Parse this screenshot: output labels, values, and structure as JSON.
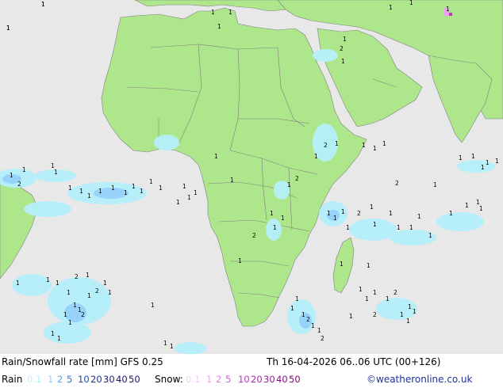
{
  "title": "Rain/Snowfall rate [mm] GFS 0.25",
  "datetime": "Th 16-04-2026 06..06 UTC (00+126)",
  "credit": "©weatheronline.co.uk",
  "legend": {
    "rain_label": "Rain",
    "snow_label": "Snow:",
    "rain_values": [
      "0.1",
      "1",
      "2",
      "5",
      "10",
      "20",
      "30",
      "40",
      "50"
    ],
    "snow_values": [
      "0.1",
      "1",
      "2",
      "5",
      "10",
      "20",
      "30",
      "40",
      "50"
    ],
    "rain_colors": [
      "#b4f0fa",
      "#96d2fa",
      "#50a5f5",
      "#2878dc",
      "#1e4bb4",
      "#1e3296",
      "#1e1e78",
      "#1e1464",
      "#1e1464"
    ],
    "snow_colors": [
      "#fac8fa",
      "#f0a0f0",
      "#e678e6",
      "#dc50dc",
      "#c832c8",
      "#b41eb4",
      "#a014a0",
      "#8c0a8c",
      "#780078"
    ]
  },
  "colors": {
    "ocean": "#e8e8e8",
    "land": "#aee68c",
    "border": "#808080",
    "precip_light": "#b4f0fa",
    "precip_med": "#96d2fa"
  },
  "rain_labels": [
    {
      "v": "1"
    },
    {
      "v": "1"
    },
    {
      "v": "2"
    },
    {
      "v": "1"
    },
    {
      "v": "1"
    },
    {
      "v": "1"
    },
    {
      "v": "1"
    },
    {
      "v": "1"
    },
    {
      "v": "1"
    },
    {
      "v": "1"
    },
    {
      "v": "1"
    },
    {
      "v": "1"
    },
    {
      "v": "1"
    },
    {
      "v": "1"
    },
    {
      "v": "1"
    },
    {
      "v": "1"
    },
    {
      "v": "1"
    },
    {
      "v": "1"
    },
    {
      "v": "1"
    },
    {
      "v": "1"
    },
    {
      "v": "1"
    },
    {
      "v": "1"
    },
    {
      "v": "1"
    },
    {
      "v": "1"
    },
    {
      "v": "2"
    },
    {
      "v": "1"
    },
    {
      "v": "1"
    },
    {
      "v": "1"
    },
    {
      "v": "1"
    },
    {
      "v": "2"
    },
    {
      "v": "1"
    },
    {
      "v": "2"
    },
    {
      "v": "1"
    },
    {
      "v": "1"
    },
    {
      "v": "1"
    },
    {
      "v": "1"
    },
    {
      "v": "1"
    },
    {
      "v": "1"
    },
    {
      "v": "1"
    },
    {
      "v": "1"
    },
    {
      "v": "2"
    },
    {
      "v": "1"
    },
    {
      "v": "1"
    },
    {
      "v": "1"
    },
    {
      "v": "1"
    },
    {
      "v": "1"
    },
    {
      "v": "1"
    },
    {
      "v": "1"
    },
    {
      "v": "1"
    },
    {
      "v": "1"
    },
    {
      "v": "1"
    },
    {
      "v": "1"
    },
    {
      "v": "1"
    },
    {
      "v": "1"
    },
    {
      "v": "1"
    },
    {
      "v": "1"
    },
    {
      "v": "1"
    },
    {
      "v": "1"
    },
    {
      "v": "1"
    },
    {
      "v": "1"
    },
    {
      "v": "1"
    },
    {
      "v": "1"
    },
    {
      "v": "1"
    },
    {
      "v": "2"
    },
    {
      "v": "1"
    },
    {
      "v": "1"
    },
    {
      "v": "1"
    },
    {
      "v": "1"
    },
    {
      "v": "2"
    },
    {
      "v": "1"
    },
    {
      "v": "1"
    },
    {
      "v": "2"
    },
    {
      "v": "1"
    },
    {
      "v": "1"
    },
    {
      "v": "2"
    },
    {
      "v": "1"
    },
    {
      "v": "1"
    },
    {
      "v": "1"
    },
    {
      "v": "1"
    },
    {
      "v": "1"
    },
    {
      "v": "1"
    },
    {
      "v": "1"
    },
    {
      "v": "1"
    },
    {
      "v": "2"
    },
    {
      "v": "1"
    },
    {
      "v": "2"
    },
    {
      "v": "1"
    },
    {
      "v": "1"
    },
    {
      "v": "1"
    },
    {
      "v": "1"
    },
    {
      "v": "1"
    },
    {
      "v": "1"
    },
    {
      "v": "1"
    },
    {
      "v": "1"
    },
    {
      "v": "1"
    },
    {
      "v": "2"
    },
    {
      "v": "1"
    },
    {
      "v": "2"
    },
    {
      "v": "1"
    },
    {
      "v": "1"
    },
    {
      "v": "1"
    },
    {
      "v": "1"
    },
    {
      "v": "1"
    },
    {
      "v": "1"
    },
    {
      "v": "1"
    },
    {
      "v": "2"
    },
    {
      "v": "1"
    },
    {
      "v": "1"
    },
    {
      "v": "1"
    },
    {
      "v": "1"
    }
  ]
}
